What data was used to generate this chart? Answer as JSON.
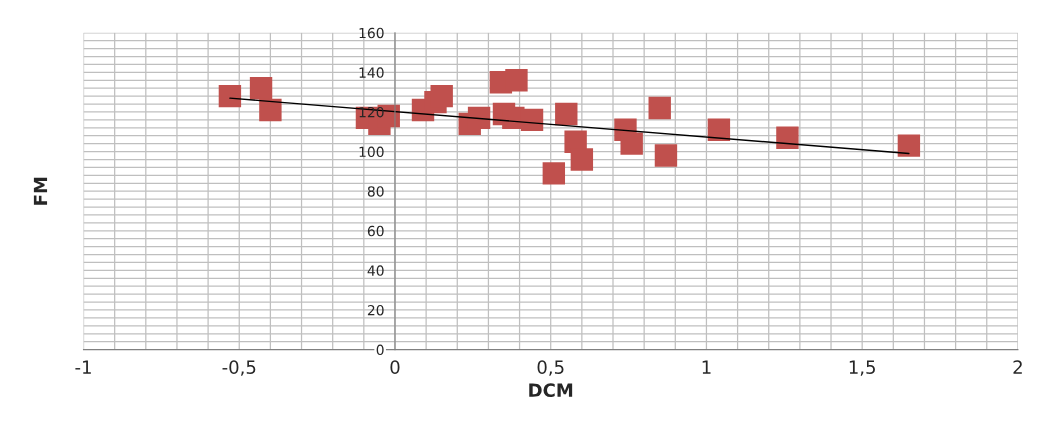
{
  "chart_data": {
    "type": "scatter",
    "xlabel": "DCM",
    "ylabel": "FM",
    "xlim": [
      -1,
      2
    ],
    "ylim": [
      0,
      160
    ],
    "xticks": [
      -1,
      {
        "value": -0.9,
        "label": null
      },
      {
        "value": -0.8,
        "label": null
      },
      {
        "value": -0.7,
        "label": null
      },
      {
        "value": -0.6,
        "label": null
      },
      {
        "value": -0.5,
        "label": "-0,5"
      },
      {
        "value": -0.4,
        "label": null
      },
      {
        "value": -0.3,
        "label": null
      },
      {
        "value": -0.2,
        "label": null
      },
      {
        "value": -0.1,
        "label": null
      },
      0,
      {
        "value": 0.1,
        "label": null
      },
      {
        "value": 0.2,
        "label": null
      },
      {
        "value": 0.3,
        "label": null
      },
      {
        "value": 0.4,
        "label": null
      },
      {
        "value": 0.5,
        "label": "0,5"
      },
      {
        "value": 0.6,
        "label": null
      },
      {
        "value": 0.7,
        "label": null
      },
      {
        "value": 0.8,
        "label": null
      },
      {
        "value": 0.9,
        "label": null
      },
      1,
      {
        "value": 1.1,
        "label": null
      },
      {
        "value": 1.2,
        "label": null
      },
      {
        "value": 1.3,
        "label": null
      },
      {
        "value": 1.4,
        "label": null
      },
      {
        "value": 1.5,
        "label": "1,5"
      },
      {
        "value": 1.6,
        "label": null
      },
      {
        "value": 1.7,
        "label": null
      },
      {
        "value": 1.8,
        "label": null
      },
      {
        "value": 1.9,
        "label": null
      },
      2
    ],
    "yticks": [
      0,
      {
        "value": 4,
        "label": null
      },
      {
        "value": 8,
        "label": null
      },
      {
        "value": 12,
        "label": null
      },
      {
        "value": 16,
        "label": null
      },
      20,
      {
        "value": 24,
        "label": null
      },
      {
        "value": 28,
        "label": null
      },
      {
        "value": 32,
        "label": null
      },
      {
        "value": 36,
        "label": null
      },
      40,
      {
        "value": 44,
        "label": null
      },
      {
        "value": 48,
        "label": null
      },
      {
        "value": 52,
        "label": null
      },
      {
        "value": 56,
        "label": null
      },
      60,
      {
        "value": 64,
        "label": null
      },
      {
        "value": 68,
        "label": null
      },
      {
        "value": 72,
        "label": null
      },
      {
        "value": 76,
        "label": null
      },
      80,
      {
        "value": 84,
        "label": null
      },
      {
        "value": 88,
        "label": null
      },
      {
        "value": 92,
        "label": null
      },
      {
        "value": 96,
        "label": null
      },
      100,
      {
        "value": 104,
        "label": null
      },
      {
        "value": 108,
        "label": null
      },
      {
        "value": 112,
        "label": null
      },
      {
        "value": 116,
        "label": null
      },
      120,
      {
        "value": 124,
        "label": null
      },
      {
        "value": 128,
        "label": null
      },
      {
        "value": 132,
        "label": null
      },
      {
        "value": 136,
        "label": null
      },
      140,
      {
        "value": 144,
        "label": null
      },
      {
        "value": 148,
        "label": null
      },
      {
        "value": 152,
        "label": null
      },
      {
        "value": 156,
        "label": null
      },
      160
    ],
    "grid": true,
    "series": [
      {
        "marker": "square",
        "color": "#c0504d",
        "x": [
          -0.53,
          -0.43,
          -0.4,
          -0.09,
          -0.05,
          -0.02,
          0.09,
          0.13,
          0.15,
          0.24,
          0.27,
          0.34,
          0.39,
          0.35,
          0.38,
          0.44,
          0.51,
          0.55,
          0.58,
          0.6,
          0.74,
          0.76,
          0.85,
          0.87,
          1.04,
          1.26,
          1.65
        ],
        "values": [
          128,
          132,
          121,
          117,
          114,
          118,
          121,
          125,
          128,
          114,
          117,
          135,
          136,
          119,
          117,
          116,
          89,
          119,
          105,
          96,
          111,
          104,
          122,
          98,
          111,
          107,
          103
        ]
      },
      {
        "type": "line",
        "color": "#000000",
        "x": [
          -0.53,
          1.65
        ],
        "values": [
          127,
          99
        ]
      }
    ]
  }
}
